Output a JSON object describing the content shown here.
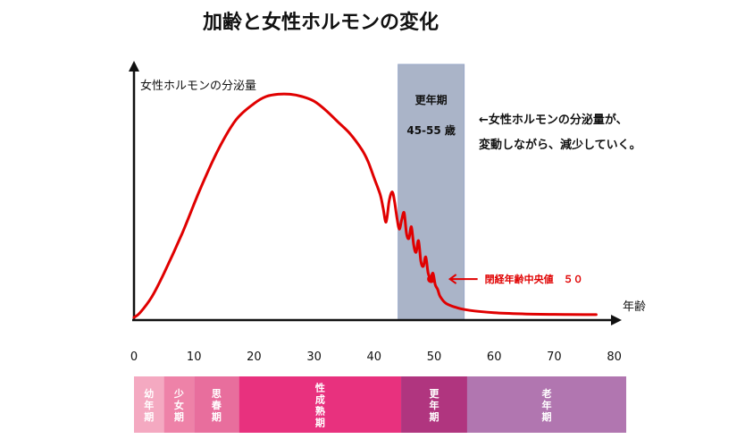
{
  "chart_data": {
    "type": "line",
    "title": "加齢と女性ホルモンの変化",
    "ylabel": "女性ホルモンの分泌量",
    "xlabel": "年齢",
    "x_ticks": [
      "0",
      "10",
      "20",
      "30",
      "40",
      "50",
      "60",
      "70",
      "80"
    ],
    "xlim": [
      0,
      80
    ],
    "ylim": [
      0,
      1
    ],
    "series": [
      {
        "color": "#e00000",
        "x": [
          0,
          1,
          3,
          5,
          8,
          11,
          14,
          17,
          20,
          22,
          24,
          26,
          28,
          30,
          32,
          34,
          36,
          38,
          39,
          40,
          41,
          41.5,
          42,
          42.5,
          43,
          43.4,
          43.8,
          44.2,
          44.6,
          45,
          45.4,
          45.8,
          46.2,
          46.6,
          47,
          47.4,
          47.8,
          48.2,
          48.6,
          49,
          49.4,
          49.8,
          50.2,
          50.6,
          51,
          52,
          54,
          56,
          60,
          65,
          70,
          75,
          77
        ],
        "values": [
          0.0,
          0.02,
          0.09,
          0.19,
          0.36,
          0.55,
          0.72,
          0.85,
          0.92,
          0.95,
          0.96,
          0.96,
          0.95,
          0.93,
          0.89,
          0.84,
          0.79,
          0.72,
          0.67,
          0.6,
          0.53,
          0.47,
          0.41,
          0.5,
          0.54,
          0.5,
          0.43,
          0.38,
          0.42,
          0.45,
          0.36,
          0.34,
          0.39,
          0.31,
          0.28,
          0.33,
          0.24,
          0.22,
          0.26,
          0.19,
          0.17,
          0.19,
          0.14,
          0.12,
          0.09,
          0.06,
          0.04,
          0.03,
          0.02,
          0.015,
          0.013,
          0.012,
          0.012
        ]
      }
    ],
    "menopause_band": {
      "start": 44,
      "end": 55,
      "label": "更年期",
      "range_label": "45-55 歳",
      "color": "#aab4c8"
    },
    "marker": {
      "x": 49.5,
      "y": 0.165,
      "label": "閉経年齢中央値　５０",
      "color": "#e00000"
    },
    "annotation": {
      "line1": "←女性ホルモンの分泌量が、",
      "line2": "変動しながら、減少していく。"
    },
    "life_stages": [
      {
        "label": "幼年期",
        "start": 0,
        "end": 5,
        "color": "#f4a9c1"
      },
      {
        "label": "少女期",
        "start": 5,
        "end": 10,
        "color": "#ee82a8"
      },
      {
        "label": "思春期",
        "start": 10,
        "end": 17.5,
        "color": "#e86e9d"
      },
      {
        "label": "性成熟期",
        "start": 17.5,
        "end": 44.5,
        "color": "#e8317e"
      },
      {
        "label": "更年期",
        "start": 44.5,
        "end": 55.5,
        "color": "#b0357f"
      },
      {
        "label": "老年期",
        "start": 55.5,
        "end": 82,
        "color": "#b176b0"
      }
    ],
    "grid": false,
    "legend": "none"
  }
}
